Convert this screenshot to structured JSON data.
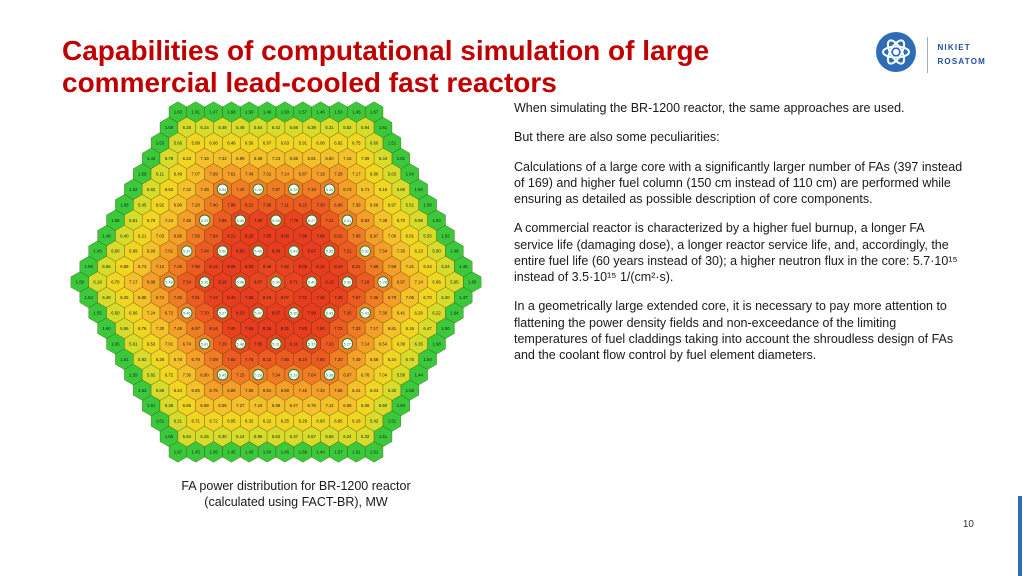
{
  "slide": {
    "title": "Capabilities of computational simulation of large commercial lead-cooled fast reactors",
    "page_number": "10"
  },
  "logo": {
    "line1": "NIKIET",
    "line2": "ROSATOM",
    "brand_color": "#1F4E9C",
    "emblem_color": "#2E6CB5"
  },
  "body": {
    "paragraphs": [
      "When simulating the BR-1200 reactor, the same approaches are used.",
      "But there are also some peculiarities:",
      "Calculations of a large core with a significantly larger number of FAs (397 instead of 169) and higher fuel column (150 cm instead of 110 cm) are performed while ensuring as detailed as possible description of core components.",
      "A commercial reactor is characterized by a higher fuel burnup, a longer FA service life (damaging dose), a longer reactor service life, and, accordingly, the entire fuel life (60 years instead of 30); a higher neutron flux in the core: 5.7·10¹⁵ instead of 3.5·10¹⁵ 1/(cm²·s).",
      "In a geometrically large extended core, it is necessary to pay more attention to flattening the power density fields and non-exceedance of the limiting temperatures of fuel claddings taking into account the shroudless design of FAs and the coolant flow control by fuel element diameters."
    ]
  },
  "figure": {
    "caption_line1": "FA power distribution for BR-1200 reactor",
    "caption_line2": "(calculated using FACT-BR), MW"
  },
  "chart_data": {
    "type": "heatmap",
    "subtype": "hexagonal_core_map",
    "title": "FA power distribution for BR-1200 reactor (calculated using FACT-BR), MW",
    "units": "MW",
    "total_fuel_assemblies": 397,
    "cells_on_side": 12,
    "ring_order": "center_to_edge",
    "ring_colors": [
      "#EA4A20",
      "#E8441F",
      "#E73C1E",
      "#E73C1E",
      "#E8431E",
      "#EC5B20",
      "#F07D24",
      "#F49F27",
      "#F5C12A",
      "#F0D622",
      "#D7DC2B",
      "#3BC83B"
    ],
    "ring_value_ranges": [
      [
        7.5,
        8.86
      ],
      [
        7.4,
        8.8
      ],
      [
        7.3,
        8.7
      ],
      [
        7.3,
        8.6
      ],
      [
        7.2,
        8.5
      ],
      [
        7.1,
        8.3
      ],
      [
        6.9,
        8.0
      ],
      [
        6.7,
        7.7
      ],
      [
        6.4,
        7.4
      ],
      [
        5.9,
        7.1
      ],
      [
        5.3,
        6.6
      ],
      [
        1.43,
        1.7
      ]
    ],
    "control_rods": {
      "max_ring": 6,
      "value_range": [
        5.27,
        5.5
      ],
      "ring_color": "#1e7d1e"
    },
    "sample_values_visible": [
      "1.43",
      "5.32",
      "5.38",
      "5.45",
      "5.96",
      "5.98",
      "6.00",
      "6.45",
      "6.72",
      "6.76",
      "6.89",
      "6.92",
      "6.93",
      "6.98",
      "8.86",
      "5.27",
      "5.29",
      "5.30",
      "5.33",
      "5.47",
      "5.50"
    ],
    "value_label_format": "0.00",
    "legend": "none"
  }
}
